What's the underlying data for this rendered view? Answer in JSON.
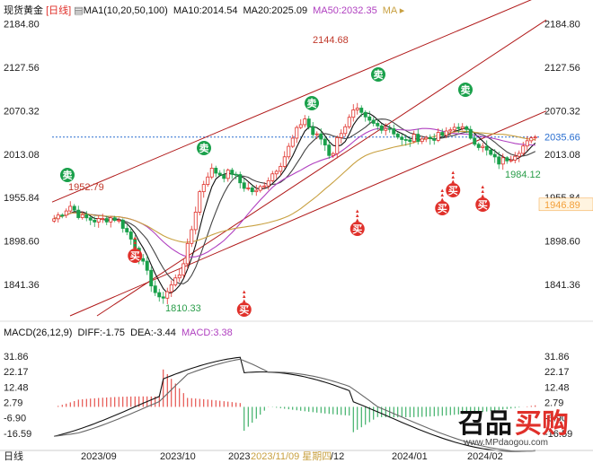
{
  "header": {
    "instrument": "现货黄金",
    "period": "[日线]",
    "ma_label": "MA1(10,20,50,100)",
    "ma10": "MA10:2014.54",
    "ma20": "MA20:2025.09",
    "ma50": "MA50:2032.35",
    "ma_more": "MA"
  },
  "macd_header": {
    "label": "MACD(26,12,9)",
    "diff": "DIFF:-1.75",
    "dea": "DEA:-3.44",
    "macd": "MACD:3.38"
  },
  "colors": {
    "up": "#e0302a",
    "down": "#19a04a",
    "ma10": "#111111",
    "ma20": "#444444",
    "ma50": "#b040c0",
    "ma100": "#c8a040",
    "channel": "#b01818",
    "current": "#2a6fd0",
    "level_box": "#f3a03a"
  },
  "chart_data": [
    {
      "type": "candlestick",
      "title": "现货黄金 [日线]",
      "y_ticks": [
        "2184.80",
        "2127.56",
        "2070.32",
        "2013.08",
        "1955.84",
        "1898.60",
        "1841.36"
      ],
      "x_ticks": [
        "2023/09",
        "2023/10",
        "2023",
        "2023/11/09 星期四",
        "/12",
        "2024/01",
        "2024/02"
      ],
      "ylim": [
        1800,
        2195
      ],
      "annotations": [
        {
          "text": "2144.68",
          "kind": "high"
        },
        {
          "text": "1952.79",
          "kind": "high"
        },
        {
          "text": "1810.33",
          "kind": "low"
        },
        {
          "text": "1984.12",
          "kind": "low"
        }
      ],
      "current_price": "2035.66",
      "level_label": "1946.89",
      "signals": {
        "buy": "买",
        "sell": "卖"
      },
      "buy_signal_count": 6,
      "sell_signal_count": 5,
      "series": [
        {
          "name": "MA10",
          "last": 2014.54
        },
        {
          "name": "MA20",
          "last": 2025.09
        },
        {
          "name": "MA50",
          "last": 2032.35
        }
      ]
    },
    {
      "type": "bar",
      "title": "MACD(26,12,9)",
      "y_ticks": [
        "31.86",
        "22.17",
        "12.48",
        "2.79",
        "-6.90",
        "-16.59"
      ],
      "ylim": [
        -26.3,
        41.5
      ],
      "series": [
        {
          "name": "DIFF",
          "last": -1.75
        },
        {
          "name": "DEA",
          "last": -3.44
        },
        {
          "name": "MACD",
          "last": 3.38
        }
      ]
    }
  ],
  "watermark": {
    "brand": "买购",
    "brand_prefix": "召品",
    "url": "www.MPdaogou.com"
  }
}
